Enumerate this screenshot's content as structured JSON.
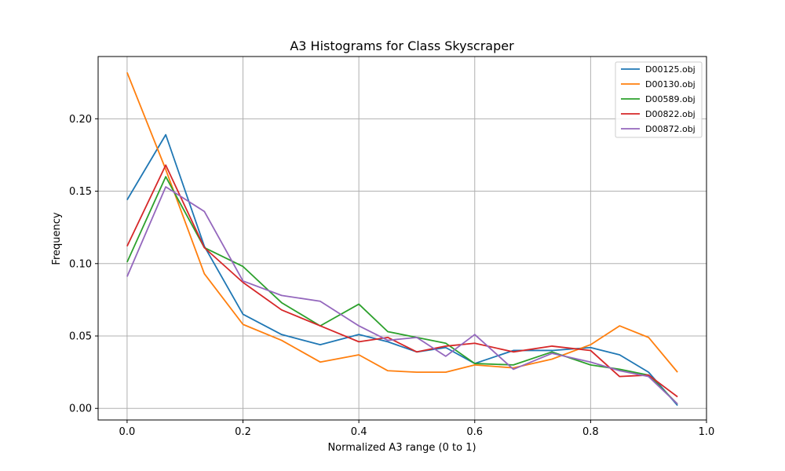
{
  "chart_data": {
    "type": "line",
    "title": "A3 Histograms for Class Skyscraper",
    "xlabel": "Normalized A3 range (0 to 1)",
    "ylabel": "Frequency",
    "xlim": [
      -0.05,
      1.0
    ],
    "ylim": [
      -0.008,
      0.243
    ],
    "xticks": [
      0.0,
      0.2,
      0.4,
      0.6,
      0.8,
      1.0
    ],
    "xtick_labels": [
      "0.0",
      "0.2",
      "0.4",
      "0.6",
      "0.8",
      "1.0"
    ],
    "yticks": [
      0.0,
      0.05,
      0.1,
      0.15,
      0.2
    ],
    "ytick_labels": [
      "0.00",
      "0.05",
      "0.10",
      "0.15",
      "0.20"
    ],
    "grid": true,
    "legend_position": "top-right",
    "x": [
      0.0,
      0.0667,
      0.1333,
      0.2,
      0.2667,
      0.3333,
      0.4,
      0.45,
      0.5,
      0.55,
      0.6,
      0.6667,
      0.7333,
      0.8,
      0.85,
      0.9,
      0.95
    ],
    "series": [
      {
        "name": "D00125.obj",
        "color": "#1f77b4",
        "values": [
          0.144,
          0.189,
          0.112,
          0.065,
          0.051,
          0.044,
          0.051,
          0.046,
          0.039,
          0.042,
          0.031,
          0.04,
          0.04,
          0.042,
          0.037,
          0.025,
          0.002
        ]
      },
      {
        "name": "D00130.obj",
        "color": "#ff7f0e",
        "values": [
          0.232,
          0.165,
          0.093,
          0.058,
          0.047,
          0.032,
          0.037,
          0.026,
          0.025,
          0.025,
          0.03,
          0.028,
          0.034,
          0.044,
          0.057,
          0.049,
          0.025
        ]
      },
      {
        "name": "D00589.obj",
        "color": "#2ca02c",
        "values": [
          0.101,
          0.16,
          0.111,
          0.098,
          0.073,
          0.057,
          0.072,
          0.053,
          0.049,
          0.045,
          0.031,
          0.03,
          0.039,
          0.03,
          0.027,
          0.023,
          0.003
        ]
      },
      {
        "name": "D00822.obj",
        "color": "#d62728",
        "values": [
          0.112,
          0.168,
          0.111,
          0.087,
          0.068,
          0.057,
          0.046,
          0.049,
          0.039,
          0.043,
          0.045,
          0.039,
          0.043,
          0.04,
          0.022,
          0.023,
          0.008
        ]
      },
      {
        "name": "D00872.obj",
        "color": "#9467bd",
        "values": [
          0.091,
          0.153,
          0.136,
          0.088,
          0.078,
          0.074,
          0.057,
          0.047,
          0.049,
          0.036,
          0.051,
          0.027,
          0.038,
          0.032,
          0.026,
          0.022,
          0.003
        ]
      }
    ]
  }
}
